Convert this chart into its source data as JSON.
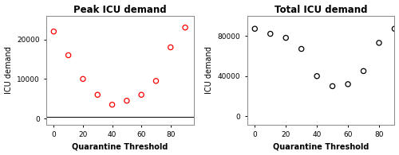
{
  "left_title": "Peak ICU demand",
  "right_title": "Total ICU demand",
  "xlabel": "Quarantine Threshold",
  "ylabel": "ICU demand",
  "peak_x": [
    0,
    10,
    20,
    30,
    40,
    50,
    60,
    70,
    80,
    90
  ],
  "peak_y": [
    22000,
    16000,
    10000,
    6000,
    3500,
    4500,
    6000,
    9500,
    18000,
    23000
  ],
  "total_x": [
    0,
    10,
    20,
    30,
    40,
    50,
    60,
    70,
    80,
    90
  ],
  "total_y": [
    87000,
    82000,
    78000,
    67000,
    40000,
    30000,
    32000,
    45000,
    73000,
    87000
  ],
  "peak_color": "red",
  "total_color": "black",
  "hline_y": 500,
  "peak_ylim": [
    -1500,
    26000
  ],
  "total_ylim": [
    -8000,
    100000
  ],
  "peak_yticks": [
    0,
    10000,
    20000
  ],
  "total_yticks": [
    0,
    40000,
    80000
  ],
  "peak_xlim": [
    -5,
    96
  ],
  "total_xlim": [
    -5,
    90
  ],
  "xticks": [
    0,
    20,
    40,
    60,
    80
  ],
  "marker_size": 20,
  "marker_linewidth": 0.9,
  "title_fontsize": 8.5,
  "label_fontsize": 7,
  "tick_fontsize": 6.5,
  "bg_color": "white",
  "spine_color": "#888888"
}
